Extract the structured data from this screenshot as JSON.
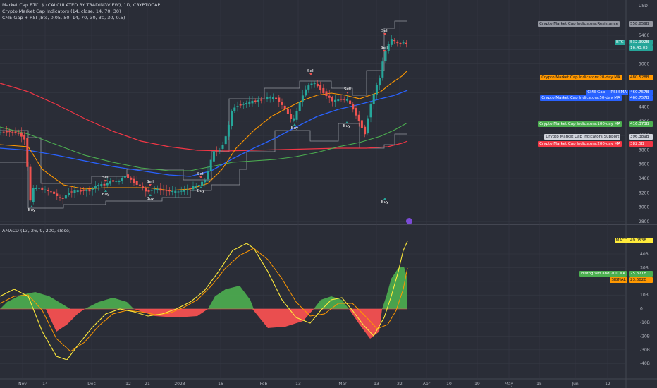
{
  "legend": {
    "symbol": "Market Cap BTC, $ (CALCULATED BY TRADINGVIEW), 1D, CRYPTOCAP",
    "ind1": "Crypto Market Cap Indicators (14, close, 14, 70, 30)",
    "ind2": "CME Gap + RSI (btc, 0.05, 50, 14, 70, 30, 30, 30, 0.5)",
    "ind3": "AMACD (13, 26, 9, 200, close)"
  },
  "currency": "USD",
  "colors": {
    "background": "#2a2d37",
    "up": "#26a69a",
    "down": "#ef5350",
    "ma20": "#ff9800",
    "ma50": "#2962ff",
    "ma100": "#4caf50",
    "ma200": "#f23645",
    "band": "#9598a1",
    "macd": "#ffeb3b",
    "signal": "#ff9800",
    "hist_pos": "#4caf50",
    "hist_neg": "#ff5252"
  },
  "price_tags": [
    {
      "label": "Crypto Market Cap Indicators:Resistance",
      "value": "558.859B",
      "color": "#9598a1",
      "text": "#131722"
    },
    {
      "label": "BTC",
      "value": "532.392B",
      "sub": "16:43:03",
      "color": "#26a69a",
      "text": "#ffffff"
    },
    {
      "label": "Crypto Market Cap Indicators:20-day MA",
      "value": "480.528B",
      "color": "#ff9800",
      "text": "#131722"
    },
    {
      "label": "CME Gap + RSI:SMA",
      "value": "460.757B",
      "color": "#2962ff",
      "text": "#ffffff"
    },
    {
      "label": "Crypto Market Cap Indicators:50-day MA",
      "value": "460.757B",
      "color": "#2962ff",
      "text": "#ffffff"
    },
    {
      "label": "Crypto Market Cap Indicators:100-day MA",
      "value": "416.373B",
      "color": "#4caf50",
      "text": "#ffffff"
    },
    {
      "label": "Crypto Market Cap Indicators:Support",
      "value": "396.389B",
      "color": "#d1d4dc",
      "text": "#131722"
    },
    {
      "label": "Crypto Market Cap Indicators:200-day MA",
      "value": "382.5B",
      "color": "#f23645",
      "text": "#ffffff"
    }
  ],
  "macd_tags": [
    {
      "label": "MACD",
      "value": "49.053B",
      "color": "#ffeb3b",
      "text": "#131722"
    },
    {
      "label": "Histogram and 200 MA",
      "value": "25.371B",
      "color": "#4caf50",
      "text": "#ffffff"
    },
    {
      "label": "SIGNAL",
      "value": "23.682B",
      "color": "#ff9800",
      "text": "#131722"
    }
  ],
  "price_axis": [
    "5400",
    "5200",
    "5000",
    "4800",
    "4600",
    "4400",
    "4200",
    "4000",
    "3800",
    "3600",
    "3400",
    "3200",
    "3000",
    "2800"
  ],
  "macd_axis": [
    "40B",
    "30B",
    "20B",
    "10B",
    "0",
    "-10B",
    "-20B",
    "-30B",
    "-40B"
  ],
  "time_axis": [
    "Nov",
    "14",
    "Dec",
    "12",
    "21",
    "2023",
    "16",
    "Feb",
    "13",
    "Mar",
    "13",
    "22",
    "Apr",
    "10",
    "19",
    "May",
    "15",
    "Jun",
    "12"
  ],
  "signals": [
    {
      "text": "Buy",
      "type": "buy"
    },
    {
      "text": "Sell",
      "type": "sell"
    },
    {
      "text": "Buy",
      "type": "buy"
    },
    {
      "text": "Sell",
      "type": "sell"
    },
    {
      "text": "Buy",
      "type": "buy"
    },
    {
      "text": "Sell",
      "type": "sell"
    },
    {
      "text": "Buy",
      "type": "buy"
    },
    {
      "text": "Sell",
      "type": "sell"
    },
    {
      "text": "Buy",
      "type": "buy"
    },
    {
      "text": "Sell",
      "type": "sell"
    },
    {
      "text": "Buy",
      "type": "buy"
    },
    {
      "text": "Sell",
      "type": "sell"
    },
    {
      "text": "Buy",
      "type": "buy"
    },
    {
      "text": "Sell",
      "type": "sell"
    }
  ]
}
